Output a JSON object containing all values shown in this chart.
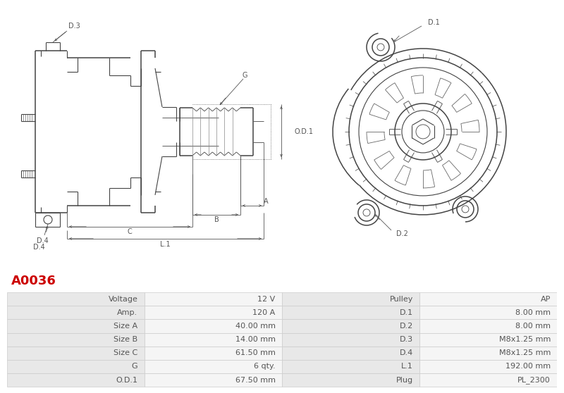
{
  "title": "A0036",
  "title_color": "#cc0000",
  "bg_color": "#ffffff",
  "table_rows": [
    [
      "Voltage",
      "12 V",
      "Pulley",
      "AP"
    ],
    [
      "Amp.",
      "120 A",
      "D.1",
      "8.00 mm"
    ],
    [
      "Size A",
      "40.00 mm",
      "D.2",
      "8.00 mm"
    ],
    [
      "Size B",
      "14.00 mm",
      "D.3",
      "M8x1.25 mm"
    ],
    [
      "Size C",
      "61.50 mm",
      "D.4",
      "M8x1.25 mm"
    ],
    [
      "G",
      "6 qty.",
      "L.1",
      "192.00 mm"
    ],
    [
      "O.D.1",
      "67.50 mm",
      "Plug",
      "PL_2300"
    ]
  ],
  "col_header_bg": "#e8e8e8",
  "col_value_bg": "#f5f5f5",
  "table_text_color": "#555555",
  "border_color": "#cccccc",
  "line_color": "#444444",
  "dim_color": "#555555",
  "font_size_table": 8.0,
  "font_size_title": 13,
  "font_size_label": 7.0
}
